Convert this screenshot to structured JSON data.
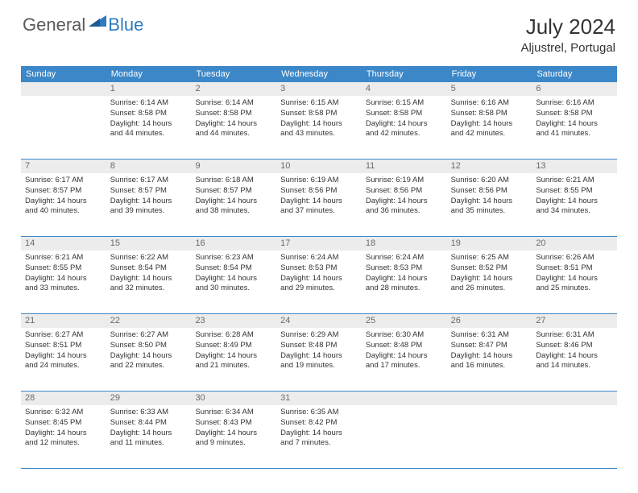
{
  "brand": {
    "general": "General",
    "blue": "Blue"
  },
  "header": {
    "monthYear": "July 2024",
    "location": "Aljustrel, Portugal"
  },
  "colors": {
    "headerBg": "#3b87c8",
    "headerText": "#ffffff",
    "dayNumBg": "#ececec",
    "dayNumText": "#6a6a6a",
    "bodyText": "#333333",
    "logoGray": "#5a5a5a",
    "logoBlue": "#2f7bbf",
    "borderBlue": "#3b87c8"
  },
  "dayNames": [
    "Sunday",
    "Monday",
    "Tuesday",
    "Wednesday",
    "Thursday",
    "Friday",
    "Saturday"
  ],
  "weeks": [
    {
      "nums": [
        "",
        "1",
        "2",
        "3",
        "4",
        "5",
        "6"
      ],
      "cells": [
        [],
        [
          "Sunrise: 6:14 AM",
          "Sunset: 8:58 PM",
          "Daylight: 14 hours",
          "and 44 minutes."
        ],
        [
          "Sunrise: 6:14 AM",
          "Sunset: 8:58 PM",
          "Daylight: 14 hours",
          "and 44 minutes."
        ],
        [
          "Sunrise: 6:15 AM",
          "Sunset: 8:58 PM",
          "Daylight: 14 hours",
          "and 43 minutes."
        ],
        [
          "Sunrise: 6:15 AM",
          "Sunset: 8:58 PM",
          "Daylight: 14 hours",
          "and 42 minutes."
        ],
        [
          "Sunrise: 6:16 AM",
          "Sunset: 8:58 PM",
          "Daylight: 14 hours",
          "and 42 minutes."
        ],
        [
          "Sunrise: 6:16 AM",
          "Sunset: 8:58 PM",
          "Daylight: 14 hours",
          "and 41 minutes."
        ]
      ]
    },
    {
      "nums": [
        "7",
        "8",
        "9",
        "10",
        "11",
        "12",
        "13"
      ],
      "cells": [
        [
          "Sunrise: 6:17 AM",
          "Sunset: 8:57 PM",
          "Daylight: 14 hours",
          "and 40 minutes."
        ],
        [
          "Sunrise: 6:17 AM",
          "Sunset: 8:57 PM",
          "Daylight: 14 hours",
          "and 39 minutes."
        ],
        [
          "Sunrise: 6:18 AM",
          "Sunset: 8:57 PM",
          "Daylight: 14 hours",
          "and 38 minutes."
        ],
        [
          "Sunrise: 6:19 AM",
          "Sunset: 8:56 PM",
          "Daylight: 14 hours",
          "and 37 minutes."
        ],
        [
          "Sunrise: 6:19 AM",
          "Sunset: 8:56 PM",
          "Daylight: 14 hours",
          "and 36 minutes."
        ],
        [
          "Sunrise: 6:20 AM",
          "Sunset: 8:56 PM",
          "Daylight: 14 hours",
          "and 35 minutes."
        ],
        [
          "Sunrise: 6:21 AM",
          "Sunset: 8:55 PM",
          "Daylight: 14 hours",
          "and 34 minutes."
        ]
      ]
    },
    {
      "nums": [
        "14",
        "15",
        "16",
        "17",
        "18",
        "19",
        "20"
      ],
      "cells": [
        [
          "Sunrise: 6:21 AM",
          "Sunset: 8:55 PM",
          "Daylight: 14 hours",
          "and 33 minutes."
        ],
        [
          "Sunrise: 6:22 AM",
          "Sunset: 8:54 PM",
          "Daylight: 14 hours",
          "and 32 minutes."
        ],
        [
          "Sunrise: 6:23 AM",
          "Sunset: 8:54 PM",
          "Daylight: 14 hours",
          "and 30 minutes."
        ],
        [
          "Sunrise: 6:24 AM",
          "Sunset: 8:53 PM",
          "Daylight: 14 hours",
          "and 29 minutes."
        ],
        [
          "Sunrise: 6:24 AM",
          "Sunset: 8:53 PM",
          "Daylight: 14 hours",
          "and 28 minutes."
        ],
        [
          "Sunrise: 6:25 AM",
          "Sunset: 8:52 PM",
          "Daylight: 14 hours",
          "and 26 minutes."
        ],
        [
          "Sunrise: 6:26 AM",
          "Sunset: 8:51 PM",
          "Daylight: 14 hours",
          "and 25 minutes."
        ]
      ]
    },
    {
      "nums": [
        "21",
        "22",
        "23",
        "24",
        "25",
        "26",
        "27"
      ],
      "cells": [
        [
          "Sunrise: 6:27 AM",
          "Sunset: 8:51 PM",
          "Daylight: 14 hours",
          "and 24 minutes."
        ],
        [
          "Sunrise: 6:27 AM",
          "Sunset: 8:50 PM",
          "Daylight: 14 hours",
          "and 22 minutes."
        ],
        [
          "Sunrise: 6:28 AM",
          "Sunset: 8:49 PM",
          "Daylight: 14 hours",
          "and 21 minutes."
        ],
        [
          "Sunrise: 6:29 AM",
          "Sunset: 8:48 PM",
          "Daylight: 14 hours",
          "and 19 minutes."
        ],
        [
          "Sunrise: 6:30 AM",
          "Sunset: 8:48 PM",
          "Daylight: 14 hours",
          "and 17 minutes."
        ],
        [
          "Sunrise: 6:31 AM",
          "Sunset: 8:47 PM",
          "Daylight: 14 hours",
          "and 16 minutes."
        ],
        [
          "Sunrise: 6:31 AM",
          "Sunset: 8:46 PM",
          "Daylight: 14 hours",
          "and 14 minutes."
        ]
      ]
    },
    {
      "nums": [
        "28",
        "29",
        "30",
        "31",
        "",
        "",
        ""
      ],
      "cells": [
        [
          "Sunrise: 6:32 AM",
          "Sunset: 8:45 PM",
          "Daylight: 14 hours",
          "and 12 minutes."
        ],
        [
          "Sunrise: 6:33 AM",
          "Sunset: 8:44 PM",
          "Daylight: 14 hours",
          "and 11 minutes."
        ],
        [
          "Sunrise: 6:34 AM",
          "Sunset: 8:43 PM",
          "Daylight: 14 hours",
          "and 9 minutes."
        ],
        [
          "Sunrise: 6:35 AM",
          "Sunset: 8:42 PM",
          "Daylight: 14 hours",
          "and 7 minutes."
        ],
        [],
        [],
        []
      ]
    }
  ]
}
